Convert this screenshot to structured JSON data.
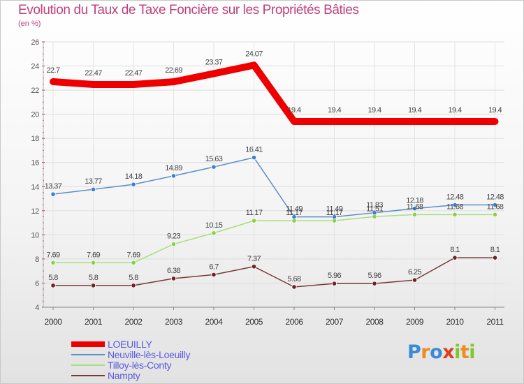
{
  "chart_data": {
    "type": "line",
    "title": "Evolution du Taux de Taxe Foncière sur les Propriétés Bâties",
    "subtitle": "(en %)",
    "xlabel": "",
    "ylabel": "",
    "ylim": [
      4,
      26
    ],
    "y_ticks": [
      4,
      6,
      8,
      10,
      12,
      14,
      16,
      18,
      20,
      22,
      24,
      26
    ],
    "grid": true,
    "legend_position": "bottom-left",
    "categories": [
      "2000",
      "2001",
      "2002",
      "2003",
      "2004",
      "2005",
      "2006",
      "2007",
      "2008",
      "2009",
      "2010",
      "2011"
    ],
    "series": [
      {
        "name": "LOEUILLY",
        "color": "#ee0000",
        "marker_fill": "#ee0000",
        "values": [
          22.7,
          22.47,
          22.47,
          22.69,
          23.37,
          24.07,
          19.4,
          19.4,
          19.4,
          19.4,
          19.4,
          19.4
        ],
        "labels": [
          "22.7",
          "22.47",
          "22.47",
          "22.69",
          "23.37",
          "24.07",
          "19.4",
          "19.4",
          "19.4",
          "19.4",
          "19.4",
          "19.4"
        ]
      },
      {
        "name": "Neuville-lès-Loeuilly",
        "color": "#5b8fc9",
        "marker_fill": "#3f7fd0",
        "values": [
          13.37,
          13.77,
          14.18,
          14.89,
          15.63,
          16.41,
          11.49,
          11.49,
          11.83,
          12.18,
          12.48,
          12.48
        ],
        "labels": [
          "13.37",
          "13.77",
          "14.18",
          "14.89",
          "15.63",
          "16.41",
          "11.49",
          "11.49",
          "11.83",
          "12.18",
          "12.48",
          "12.48"
        ]
      },
      {
        "name": "Tilloy-lès-Conty",
        "color": "#a6e07a",
        "marker_fill": "#88d04a",
        "values": [
          7.69,
          7.69,
          7.69,
          9.23,
          10.15,
          11.17,
          11.17,
          11.17,
          11.51,
          11.68,
          11.68,
          11.68
        ],
        "labels": [
          "7.69",
          "7.69",
          "7.69",
          "9.23",
          "10.15",
          "11.17",
          "11.17",
          "11.17",
          "11.51",
          "11.68",
          "11.68",
          "11.68"
        ]
      },
      {
        "name": "Nampty",
        "color": "#7a3a3a",
        "marker_fill": "#6a2424",
        "values": [
          5.8,
          5.8,
          5.8,
          6.38,
          6.7,
          7.37,
          5.68,
          5.96,
          5.96,
          6.25,
          8.1,
          8.1
        ],
        "labels": [
          "5.8",
          "5.8",
          "5.8",
          "6.38",
          "6.7",
          "7.37",
          "5.68",
          "5.96",
          "5.96",
          "6.25",
          "8.1",
          "8.1"
        ]
      }
    ]
  },
  "logo": {
    "letters": [
      "P",
      "r",
      "o",
      "x",
      "i",
      "t",
      "i"
    ],
    "colors": [
      "#3a8ad8",
      "#f08a1c",
      "#3a8ad8",
      "#e23c1c",
      "#7cc830",
      "#f08a1c",
      "#7cc830"
    ]
  }
}
